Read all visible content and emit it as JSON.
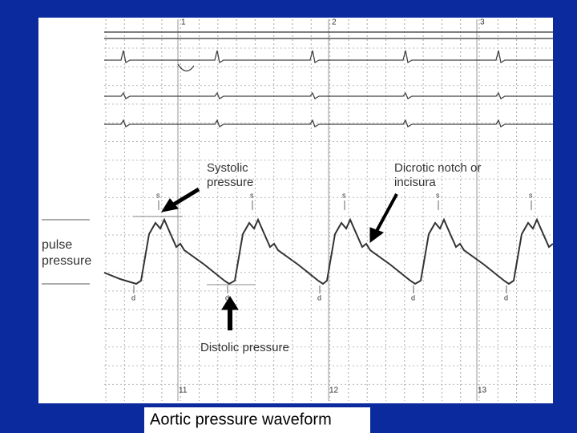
{
  "figure": {
    "systolic_label": [
      "Systolic",
      "pressure"
    ],
    "dicrotic_label": [
      "Dicrotic notch or",
      "incisura"
    ],
    "pulse_label": [
      "pulse",
      "pressure"
    ],
    "diastolic_label": "Distolic pressure",
    "top_markers": [
      "1",
      "2",
      "3"
    ],
    "bottom_markers": [
      "11",
      "12",
      "13"
    ],
    "s_marks": [
      "s",
      "s",
      "s",
      "s",
      "s"
    ],
    "d_marks": [
      "d",
      "d",
      "d",
      "d",
      "d"
    ]
  },
  "caption": "Aortic pressure waveform"
}
